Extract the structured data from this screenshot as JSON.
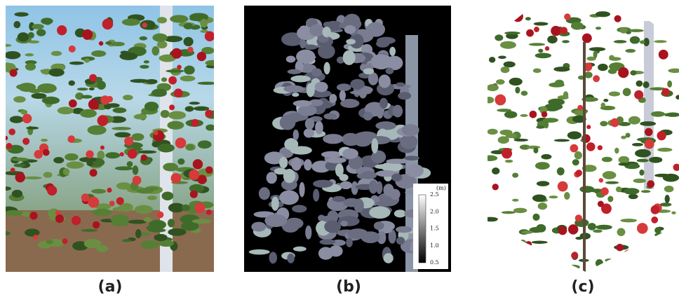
{
  "panels": [
    {
      "label": "(a)"
    },
    {
      "label": "(b)"
    },
    {
      "label": "(c)"
    }
  ],
  "colorbar": {
    "unit": "(m)",
    "ticks": [
      "2.5",
      "2.0",
      "1.5",
      "1.0",
      "0.5"
    ]
  }
}
